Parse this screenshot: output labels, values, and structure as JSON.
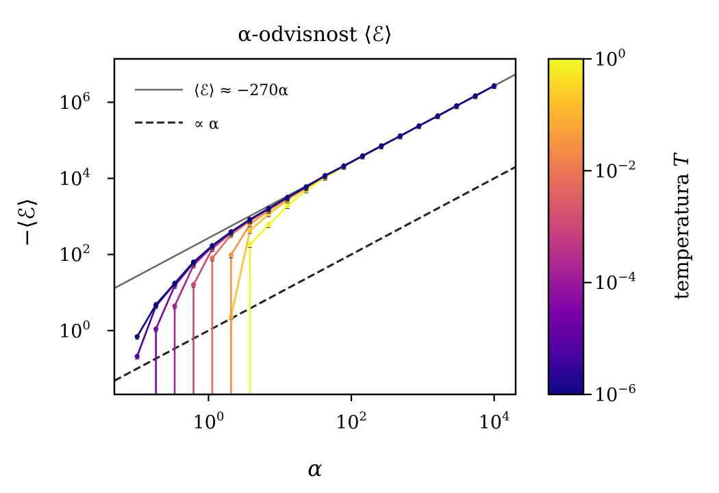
{
  "chart_data": {
    "type": "line",
    "title": "α-odvisnost ⟨ℰ⟩",
    "xlabel": "α",
    "ylabel": "−⟨ℰ⟩",
    "xscale": "log",
    "yscale": "log",
    "xlim": [
      0.048,
      20000
    ],
    "ylim": [
      0.021,
      13800000
    ],
    "x_ticks": [
      {
        "value": 1,
        "base": "10",
        "exp": "0"
      },
      {
        "value": 100,
        "base": "10",
        "exp": "2"
      },
      {
        "value": 10000,
        "base": "10",
        "exp": "4"
      }
    ],
    "y_ticks": [
      {
        "value": 1,
        "base": "10",
        "exp": "0"
      },
      {
        "value": 100,
        "base": "10",
        "exp": "2"
      },
      {
        "value": 10000,
        "base": "10",
        "exp": "4"
      },
      {
        "value": 1000000,
        "base": "10",
        "exp": "6"
      }
    ],
    "grid": false,
    "legend_position": "top-left",
    "legend": [
      {
        "label": "⟨ℰ⟩ ≈ −270α",
        "style": "solid",
        "color": "#666666"
      },
      {
        "label": "∝ α",
        "style": "dashed",
        "color": "#222222"
      }
    ],
    "reference_lines": [
      {
        "name": "fit",
        "coefficient": 270,
        "style": "solid",
        "color": "#666666"
      },
      {
        "name": "proportional",
        "coefficient": 1,
        "style": "dashed",
        "color": "#222222"
      }
    ],
    "x": [
      0.1,
      0.1833,
      0.336,
      0.6158,
      1.1288,
      2.069,
      3.7927,
      6.9519,
      12.743,
      23.357,
      42.813,
      78.476,
      143.84,
      263.67,
      483.29,
      885.87,
      1623.8,
      2976.4,
      5455.6,
      10000
    ],
    "series": [
      {
        "name": "T=1e-6",
        "T": 1e-06,
        "color": "#0d0887",
        "values": [
          0.69,
          4.8,
          17.5,
          63,
          171,
          393,
          830,
          1620,
          3160,
          6000,
          11800,
          21200,
          38900,
          71300,
          130000,
          239000,
          438000,
          804000,
          1470000,
          2700000
        ]
      },
      {
        "name": "T=5.6e-6",
        "T": 5.6e-06,
        "color": "#4c02a1",
        "values": [
          0.21,
          4.4,
          17,
          62,
          170,
          392,
          828,
          1615,
          3150,
          5990,
          11790,
          21190,
          38890,
          71290,
          130000,
          239000,
          438000,
          804000,
          1470000,
          2700000
        ]
      },
      {
        "name": "T=3.2e-5",
        "T": 3.2e-05,
        "color": "#7e03a8",
        "values": [
          null,
          1.1,
          15,
          60,
          168,
          390,
          825,
          1610,
          3140,
          5980,
          11780,
          21180,
          38880,
          71280,
          130000,
          239000,
          438000,
          804000,
          1470000,
          2700000
        ]
      },
      {
        "name": "T=1.8e-4",
        "T": 0.00018,
        "color": "#a92395",
        "values": [
          null,
          null,
          4.4,
          52,
          160,
          385,
          815,
          1600,
          3120,
          5960,
          11760,
          21160,
          38860,
          71260,
          130000,
          239000,
          438000,
          804000,
          1470000,
          2700000
        ]
      },
      {
        "name": "T=1e-3",
        "T": 0.001,
        "color": "#cc4778",
        "values": [
          null,
          null,
          null,
          16,
          140,
          370,
          800,
          1580,
          3090,
          5930,
          11730,
          21130,
          38830,
          71230,
          130000,
          239000,
          438000,
          804000,
          1470000,
          2700000
        ]
      },
      {
        "name": "T=5.6e-3",
        "T": 0.0056,
        "color": "#e56b5d",
        "values": [
          null,
          null,
          null,
          null,
          80,
          330,
          760,
          1540,
          3050,
          5890,
          11690,
          21090,
          38790,
          71190,
          130000,
          239000,
          438000,
          804000,
          1470000,
          2700000
        ]
      },
      {
        "name": "T=3.2e-2",
        "T": 0.032,
        "color": "#f89441",
        "values": [
          null,
          null,
          null,
          null,
          null,
          96,
          620,
          1420,
          2940,
          5800,
          11600,
          21000,
          38700,
          71100,
          130000,
          239000,
          438000,
          804000,
          1470000,
          2700000
        ]
      },
      {
        "name": "T=0.18",
        "T": 0.18,
        "color": "#fdc328",
        "values": [
          null,
          null,
          null,
          null,
          null,
          2.3,
          420,
          1150,
          2650,
          5500,
          11300,
          20800,
          38500,
          71000,
          130000,
          239000,
          438000,
          804000,
          1470000,
          2700000
        ]
      },
      {
        "name": "T=1",
        "T": 1,
        "color": "#f0f921",
        "values": [
          null,
          null,
          null,
          null,
          null,
          null,
          180,
          600,
          1900,
          4900,
          10500,
          20300,
          38100,
          70700,
          129500,
          238500,
          437500,
          803500,
          1469000,
          2700000
        ]
      }
    ],
    "colorbar": {
      "label": "temperatura T",
      "label_text": "temperatura ",
      "label_var": "T",
      "scale": "log",
      "range": [
        1e-06,
        1
      ],
      "colormap": "plasma",
      "colors": [
        "#0d0887",
        "#4c02a1",
        "#7e03a8",
        "#a92395",
        "#cc4778",
        "#e56b5d",
        "#f89441",
        "#fdc328",
        "#f0f921"
      ],
      "ticks": [
        {
          "value": 1,
          "base": "10",
          "exp": "0"
        },
        {
          "value": 0.01,
          "base": "10",
          "exp": "−2"
        },
        {
          "value": 0.0001,
          "base": "10",
          "exp": "−4"
        },
        {
          "value": 1e-06,
          "base": "10",
          "exp": "−6"
        }
      ]
    }
  }
}
